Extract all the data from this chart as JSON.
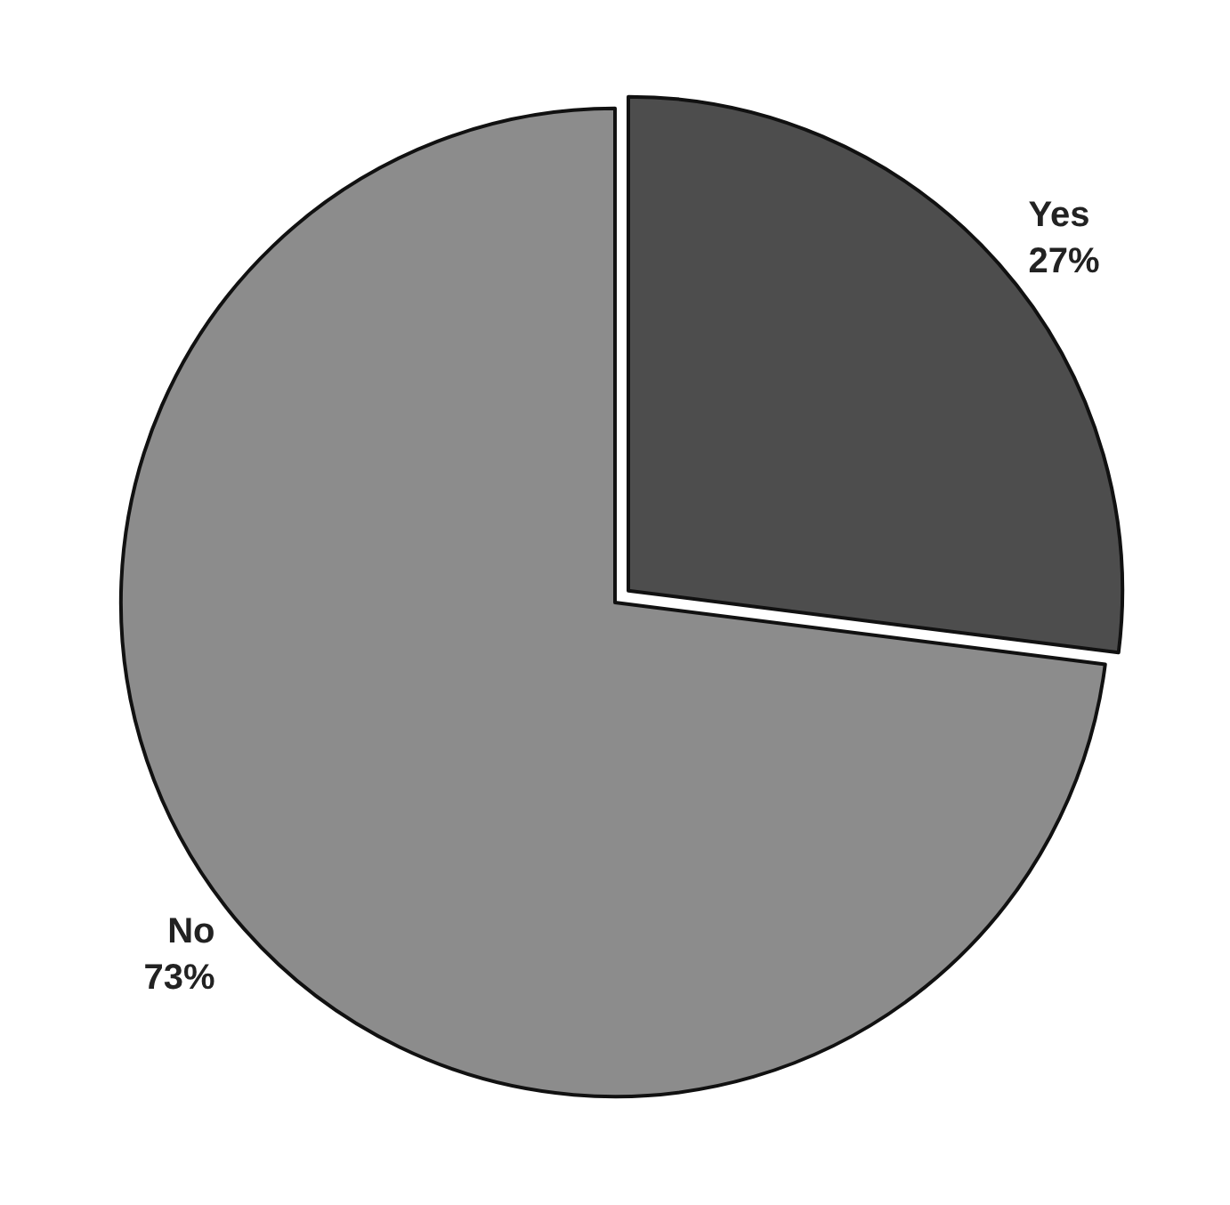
{
  "chart_data": {
    "type": "pie",
    "categories": [
      "Yes",
      "No"
    ],
    "values": [
      27,
      73
    ],
    "colors": [
      "#4d4d4d",
      "#8c8c8c"
    ],
    "value_labels": [
      "27%",
      "73%"
    ]
  }
}
